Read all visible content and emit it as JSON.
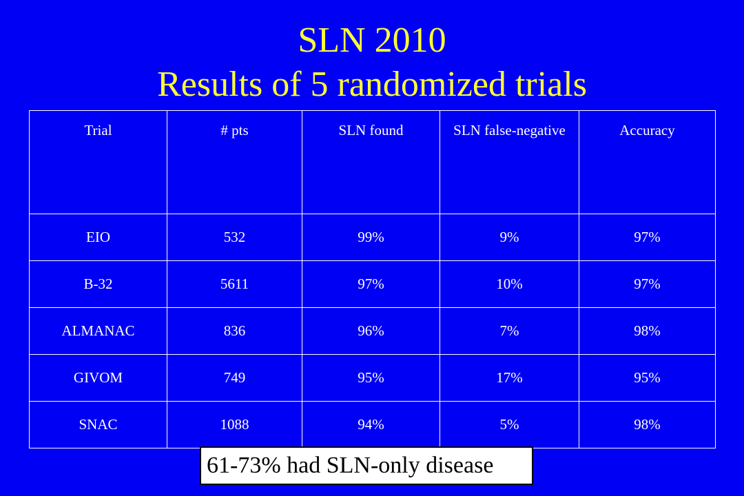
{
  "slide": {
    "title_line1": "SLN 2010",
    "title_line2": "Results of 5 randomized trials",
    "colors": {
      "background": "#0000f5",
      "title": "#ffff33",
      "table_text": "#ffffff"
    }
  },
  "table": {
    "headers": [
      "Trial",
      "# pts",
      "SLN found",
      "SLN false-negative",
      "Accuracy"
    ],
    "rows": [
      [
        "EIO",
        "532",
        "99%",
        "9%",
        "97%"
      ],
      [
        "B-32",
        "5611",
        "97%",
        "10%",
        "97%"
      ],
      [
        "ALMANAC",
        "836",
        "96%",
        "7%",
        "98%"
      ],
      [
        "GIVOM",
        "749",
        "95%",
        "17%",
        "95%"
      ],
      [
        "SNAC",
        "1088",
        "94%",
        "5%",
        "98%"
      ]
    ]
  },
  "note": {
    "text": "61-73% had SLN-only disease"
  }
}
